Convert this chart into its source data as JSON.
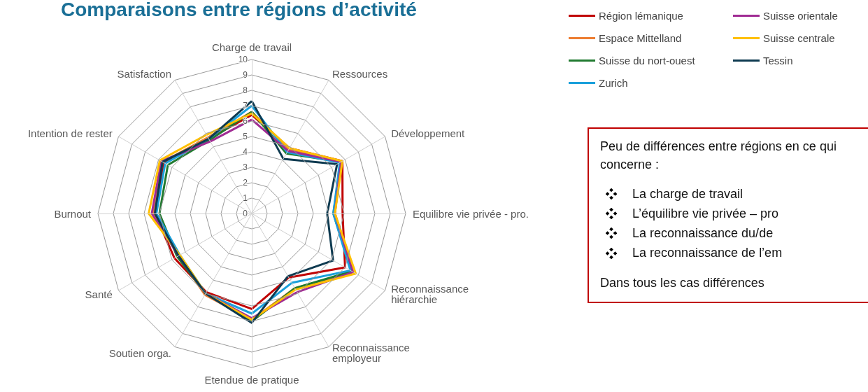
{
  "chart_data": {
    "type": "radar",
    "title": "Comparaisons entre régions d’activité",
    "categories": [
      "Charge de travail",
      "Ressources",
      "Développement",
      "Equilibre vie privée - pro.",
      "Reconnaissance\nhiérarchie",
      "Reconnaissance\nemployeur",
      "Etendue de pratique",
      "Soutien orga.",
      "Santé",
      "Burnout",
      "Intention de rester",
      "Satisfaction"
    ],
    "ylim": [
      0,
      10
    ],
    "yticks": [
      0,
      1,
      2,
      3,
      4,
      5,
      6,
      7,
      8,
      9,
      10
    ],
    "grid": true,
    "legend": "top right",
    "marker": "none",
    "line_style": "solid",
    "series": [
      {
        "name": "Région lémanique",
        "color": "#c00000",
        "values": [
          6.4,
          4.9,
          6.8,
          5.9,
          7.0,
          4.8,
          6.2,
          5.9,
          5.8,
          6.3,
          6.6,
          5.6
        ]
      },
      {
        "name": "Espace Mittelland",
        "color": "#ed7d31",
        "values": [
          6.6,
          4.8,
          6.7,
          5.4,
          7.6,
          5.6,
          6.9,
          6.1,
          5.5,
          6.4,
          6.7,
          5.7
        ]
      },
      {
        "name": "Suisse du nort-ouest",
        "color": "#217a30",
        "values": [
          6.6,
          4.5,
          6.7,
          5.3,
          7.5,
          5.6,
          7.0,
          6.0,
          5.6,
          6.0,
          6.3,
          5.5
        ]
      },
      {
        "name": "Zurich",
        "color": "#1aa0db",
        "values": [
          7.0,
          4.6,
          6.6,
          5.3,
          7.4,
          5.2,
          6.5,
          6.0,
          5.4,
          6.2,
          6.5,
          5.6
        ]
      },
      {
        "name": "Suisse orientale",
        "color": "#a02b93",
        "values": [
          6.1,
          4.7,
          6.7,
          5.4,
          7.6,
          5.9,
          6.8,
          6.0,
          5.5,
          6.5,
          6.8,
          5.4
        ]
      },
      {
        "name": "Suisse centrale",
        "color": "#ffc000",
        "values": [
          6.5,
          4.9,
          6.8,
          5.4,
          7.8,
          5.7,
          6.9,
          6.0,
          5.4,
          6.7,
          6.9,
          5.9
        ]
      },
      {
        "name": "Tessin",
        "color": "#0e3a50",
        "values": [
          7.3,
          4.1,
          6.4,
          4.9,
          6.1,
          4.7,
          7.1,
          6.0,
          5.5,
          6.3,
          6.7,
          5.6
        ]
      }
    ],
    "annotations": [
      "Peu de différences entre régions en ce qui concerne :",
      "La charge de travail",
      "L’équilibre vie privée – pro",
      "La reconnaissance du/de",
      "La reconnaissance de l’em",
      "Dans tous les cas différences"
    ]
  }
}
